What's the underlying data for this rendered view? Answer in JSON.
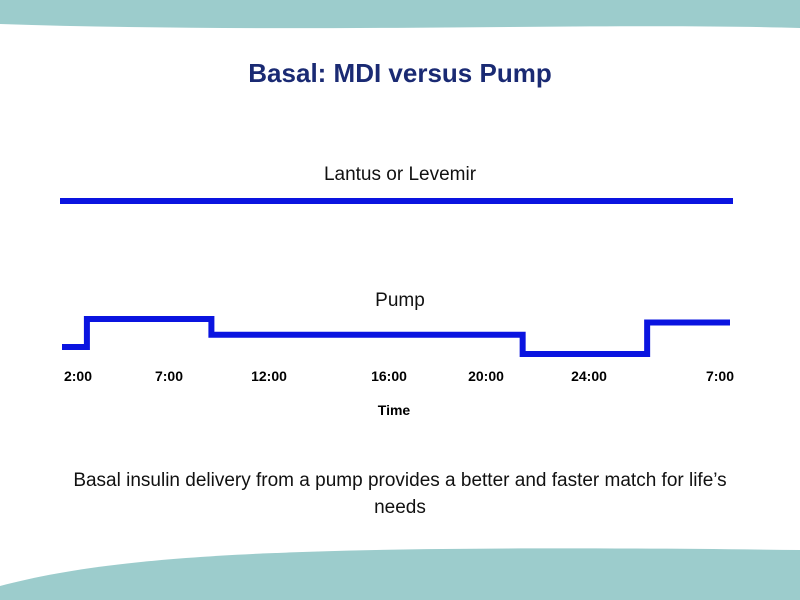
{
  "slide": {
    "title": "Basal: MDI versus Pump",
    "caption": "Basal insulin delivery from a pump provides a better and faster match for life’s needs"
  },
  "colors": {
    "title": "#1a2a73",
    "line": "#0a14e0",
    "decoration": "#9ccccc"
  },
  "chart_data": {
    "type": "line",
    "xlabel": "Time",
    "x_ticks": [
      "2:00",
      "7:00",
      "12:00",
      "16:00",
      "20:00",
      "24:00",
      "7:00"
    ],
    "series": [
      {
        "name": "Lantus or Levemir",
        "shape": "flat",
        "relative_rate": 1.0
      },
      {
        "name": "Pump",
        "shape": "step",
        "steps": [
          {
            "from": "2:00",
            "to": "3:00",
            "level": 0.2
          },
          {
            "from": "3:00",
            "to": "8:00",
            "level": 1.0
          },
          {
            "from": "8:00",
            "to": "20:30",
            "level": 0.55
          },
          {
            "from": "20:30",
            "to": "1:30",
            "level": 0.0
          },
          {
            "from": "1:30",
            "to": "7:00",
            "level": 0.9
          }
        ]
      }
    ]
  }
}
